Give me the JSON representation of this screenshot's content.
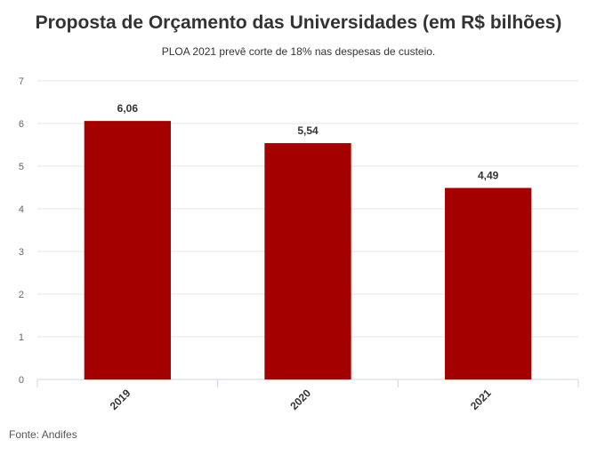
{
  "chart_data": {
    "type": "bar",
    "title": "Proposta de Orçamento das Universidades (em R$ bilhões)",
    "subtitle": "PLOA 2021 prevê corte de 18% nas despesas de custeio.",
    "categories": [
      "2019",
      "2020",
      "2021"
    ],
    "values": [
      6.06,
      5.54,
      4.49
    ],
    "data_labels": [
      "6,06",
      "5,54",
      "4,49"
    ],
    "xlabel": "",
    "ylabel": "",
    "ylim": [
      0,
      7
    ],
    "yticks": [
      0,
      1,
      2,
      3,
      4,
      5,
      6,
      7
    ],
    "grid": true,
    "legend": "none",
    "bar_color": "#a50000"
  },
  "source": "Fonte: Andifes"
}
